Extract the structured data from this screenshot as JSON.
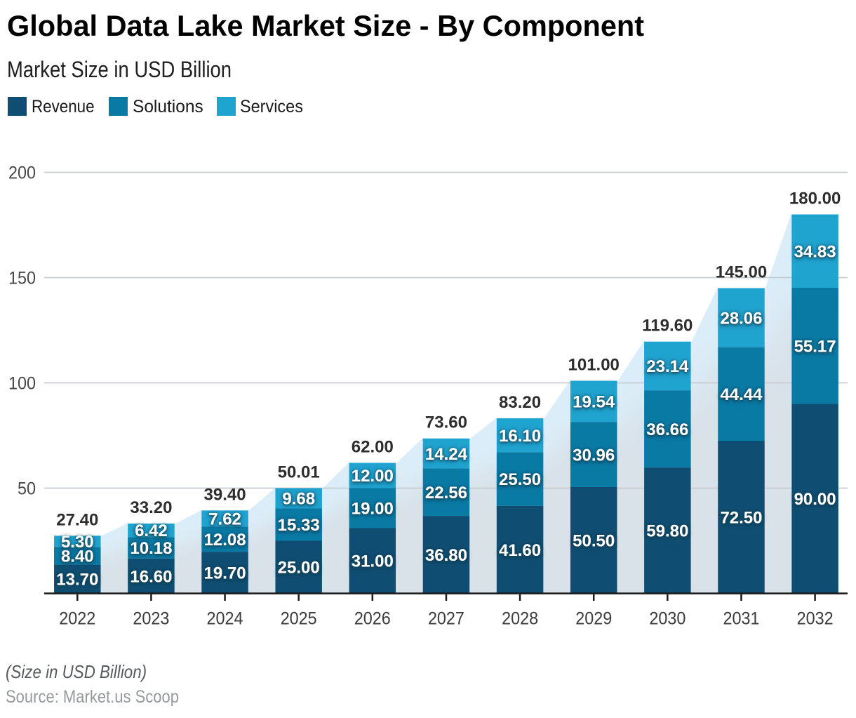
{
  "header": {
    "title": "Global Data Lake Market Size - By Component",
    "subtitle": "Market Size in USD Billion"
  },
  "chart_data": {
    "type": "bar",
    "stacked": true,
    "title": "Global Data Lake Market Size - By Component",
    "xlabel": "",
    "ylabel": "Market Size in USD Billion",
    "categories": [
      "2022",
      "2023",
      "2024",
      "2025",
      "2026",
      "2027",
      "2028",
      "2029",
      "2030",
      "2031",
      "2032"
    ],
    "series": [
      {
        "name": "Revenue",
        "color": "#0f4e72",
        "values": [
          13.7,
          16.6,
          19.7,
          25.0,
          31.0,
          36.8,
          41.6,
          50.5,
          59.8,
          72.5,
          90.0
        ]
      },
      {
        "name": "Solutions",
        "color": "#097aa4",
        "values": [
          8.4,
          10.18,
          12.08,
          15.33,
          19.0,
          22.56,
          25.5,
          30.96,
          36.66,
          44.44,
          55.17
        ]
      },
      {
        "name": "Services",
        "color": "#1fa3cf",
        "values": [
          5.3,
          6.42,
          7.62,
          9.68,
          12.0,
          14.24,
          16.1,
          19.54,
          23.14,
          28.06,
          34.83
        ]
      }
    ],
    "totals": [
      27.4,
      33.2,
      39.4,
      50.01,
      62.0,
      73.6,
      83.2,
      101.0,
      119.6,
      145.0,
      180.0
    ],
    "ylim": [
      0,
      200
    ],
    "yticks": [
      50,
      100,
      150,
      200
    ],
    "grid": true,
    "legend_position": "top-left",
    "value_decimals": 2,
    "colors": {
      "background_area_top": "#dbedf8",
      "background_area_bottom": "#d9e2e9",
      "gridline": "#c6ccd1",
      "axis_line": "#1a1a1a",
      "y_tick_label": "#484848",
      "x_tick_label": "#3b3b3b",
      "total_label": "#2d2d2d",
      "segment_label": "#ffffff",
      "segment_label_halo": "#1b3c4e"
    }
  },
  "footer": {
    "note": "(Size in USD Billion)",
    "source": "Source: Market.us Scoop"
  }
}
